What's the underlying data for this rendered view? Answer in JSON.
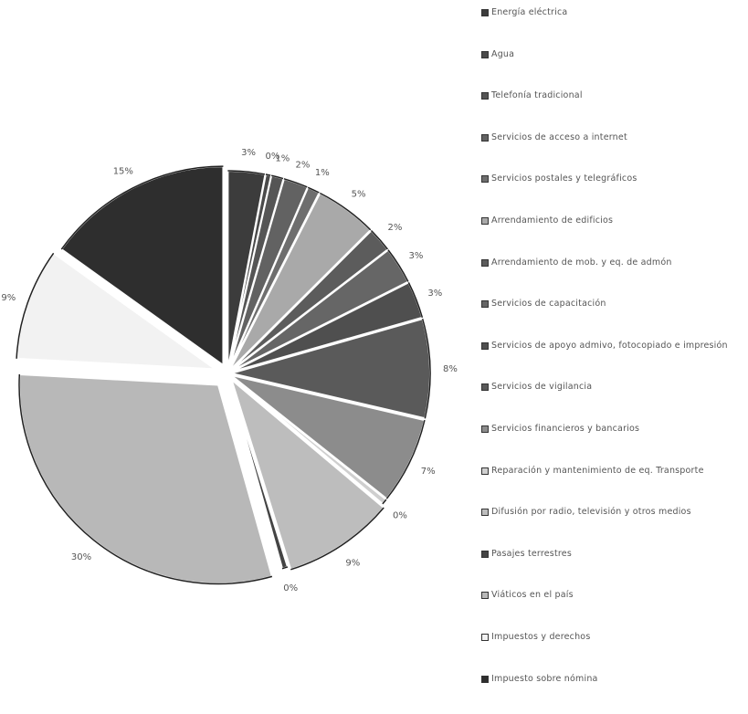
{
  "chart_data": {
    "type": "pie",
    "slices": [
      {
        "label": "Energía eléctrica",
        "value": 3,
        "pct_label": "3%",
        "color": "#3c3c3c"
      },
      {
        "label": "Agua",
        "value": 0,
        "pct_label": "0%",
        "color": "#4a4a4a"
      },
      {
        "label": "Telefonía tradicional",
        "value": 1,
        "pct_label": "1%",
        "color": "#555555"
      },
      {
        "label": "Servicios de acceso a internet",
        "value": 2,
        "pct_label": "2%",
        "color": "#626262"
      },
      {
        "label": "Servicios postales y telegráficos",
        "value": 1,
        "pct_label": "1%",
        "color": "#6e6e6e"
      },
      {
        "label": "Arrendamiento de edificios",
        "value": 5,
        "pct_label": "5%",
        "color": "#a9a9a9"
      },
      {
        "label": "Arrendamiento de mob. y eq. de admón",
        "value": 2,
        "pct_label": "2%",
        "color": "#5c5c5c"
      },
      {
        "label": "Servicios de capacitación",
        "value": 3,
        "pct_label": "3%",
        "color": "#666666"
      },
      {
        "label": "Servicios de apoyo admivo, fotocopiado e impresión",
        "value": 3,
        "pct_label": "3%",
        "color": "#4f4f4f"
      },
      {
        "label": "Servicios de vigilancia",
        "value": 8,
        "pct_label": "8%",
        "color": "#5a5a5a"
      },
      {
        "label": "Servicios financieros y bancarios",
        "value": 7,
        "pct_label": "7%",
        "color": "#8c8c8c"
      },
      {
        "label": "Reparación y mantenimiento de eq. Transporte",
        "value": 0,
        "pct_label": "0%",
        "color": "#cfcfcf"
      },
      {
        "label": "Difusión por radio, televisión y otros medios",
        "value": 9,
        "pct_label": "9%",
        "color": "#bdbdbd"
      },
      {
        "label": "Pasajes terrestres",
        "value": 0,
        "pct_label": "0%",
        "color": "#444444"
      },
      {
        "label": "Viáticos en el país",
        "value": 30,
        "pct_label": "30%",
        "color": "#b8b8b8"
      },
      {
        "label": "Impuestos y derechos",
        "value": 9,
        "pct_label": "9%",
        "color": "#f2f2f2"
      },
      {
        "label": "Impuesto sobre nómina",
        "value": 15,
        "pct_label": "15%",
        "color": "#2e2e2e"
      }
    ],
    "legend_position": "right",
    "legend_labels": [
      "Energía eléctrica",
      "Agua",
      "Telefonía tradicional",
      "Servicios de acceso a internet",
      "Servicios postales y telegráficos",
      "Arrendamiento de edificios",
      "Arrendamiento de mob. y eq. de admón",
      "Servicios de capacitación",
      "Servicios de apoyo admivo, fotocopiado e impresión",
      "Servicios de vigilancia",
      "Servicios financieros y bancarios",
      "Reparación y mantenimiento de eq. Transporte",
      "Difusión por radio, televisión y otros medios",
      "Pasajes terrestres",
      "Viáticos en el país",
      "Impuestos y derechos",
      "Impuesto sobre nómina"
    ]
  }
}
